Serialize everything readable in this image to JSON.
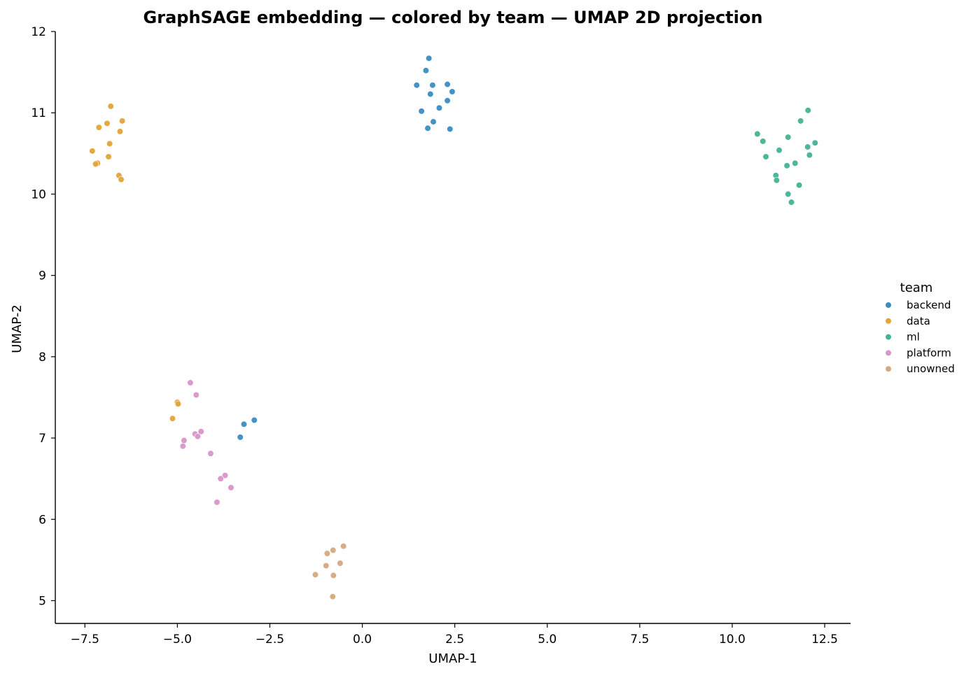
{
  "chart_data": {
    "type": "scatter",
    "title": "GraphSAGE embedding — colored by team — UMAP 2D projection",
    "xlabel": "UMAP-1",
    "ylabel": "UMAP-2",
    "xlim": [
      -8.3,
      13.2
    ],
    "ylim": [
      4.72,
      12.0
    ],
    "xticks": [
      -7.5,
      -5.0,
      -2.5,
      0.0,
      2.5,
      5.0,
      7.5,
      10.0,
      12.5
    ],
    "xtick_labels": [
      "−7.5",
      "−5.0",
      "−2.5",
      "0.0",
      "2.5",
      "5.0",
      "7.5",
      "10.0",
      "12.5"
    ],
    "yticks": [
      5,
      6,
      7,
      8,
      9,
      10,
      11,
      12
    ],
    "ytick_labels": [
      "5",
      "6",
      "7",
      "8",
      "9",
      "10",
      "11",
      "12"
    ],
    "grid": false,
    "legend": {
      "title": "team",
      "placement": "right"
    },
    "series": [
      {
        "name": "backend",
        "color": "#3b8dc1",
        "points": [
          [
            1.8,
            11.67
          ],
          [
            1.72,
            11.52
          ],
          [
            1.47,
            11.34
          ],
          [
            1.9,
            11.34
          ],
          [
            2.3,
            11.35
          ],
          [
            1.84,
            11.23
          ],
          [
            2.43,
            11.26
          ],
          [
            2.3,
            11.15
          ],
          [
            2.08,
            11.06
          ],
          [
            1.6,
            11.02
          ],
          [
            1.92,
            10.89
          ],
          [
            1.77,
            10.81
          ],
          [
            2.37,
            10.8
          ],
          [
            -3.2,
            7.17
          ],
          [
            -2.92,
            7.22
          ],
          [
            -3.3,
            7.01
          ]
        ]
      },
      {
        "name": "data",
        "color": "#e2a53a",
        "points": [
          [
            -6.8,
            11.08
          ],
          [
            -6.49,
            10.9
          ],
          [
            -6.9,
            10.87
          ],
          [
            -7.12,
            10.82
          ],
          [
            -6.55,
            10.77
          ],
          [
            -6.83,
            10.62
          ],
          [
            -7.3,
            10.53
          ],
          [
            -6.86,
            10.46
          ],
          [
            -7.16,
            10.38
          ],
          [
            -7.21,
            10.37
          ],
          [
            -6.58,
            10.23
          ],
          [
            -6.52,
            10.18
          ],
          [
            -5.0,
            7.44
          ],
          [
            -4.98,
            7.42
          ],
          [
            -5.13,
            7.24
          ]
        ]
      },
      {
        "name": "ml",
        "color": "#44b395",
        "points": [
          [
            12.05,
            11.03
          ],
          [
            11.85,
            10.9
          ],
          [
            10.68,
            10.74
          ],
          [
            11.51,
            10.7
          ],
          [
            10.83,
            10.65
          ],
          [
            12.24,
            10.63
          ],
          [
            12.04,
            10.58
          ],
          [
            11.27,
            10.54
          ],
          [
            10.91,
            10.46
          ],
          [
            12.09,
            10.48
          ],
          [
            11.7,
            10.38
          ],
          [
            11.48,
            10.35
          ],
          [
            11.18,
            10.23
          ],
          [
            11.2,
            10.17
          ],
          [
            11.81,
            10.11
          ],
          [
            11.51,
            10.0
          ],
          [
            11.6,
            9.9
          ]
        ]
      },
      {
        "name": "platform",
        "color": "#d895c9",
        "points": [
          [
            -4.65,
            7.68
          ],
          [
            -4.49,
            7.53
          ],
          [
            -4.36,
            7.08
          ],
          [
            -4.52,
            7.05
          ],
          [
            -4.45,
            7.02
          ],
          [
            -4.82,
            6.97
          ],
          [
            -4.85,
            6.9
          ],
          [
            -4.1,
            6.81
          ],
          [
            -3.71,
            6.54
          ],
          [
            -3.83,
            6.5
          ],
          [
            -3.55,
            6.39
          ],
          [
            -3.93,
            6.21
          ]
        ]
      },
      {
        "name": "unowned",
        "color": "#d4a97d",
        "points": [
          [
            -0.51,
            5.67
          ],
          [
            -0.79,
            5.62
          ],
          [
            -0.95,
            5.58
          ],
          [
            -0.6,
            5.46
          ],
          [
            -0.98,
            5.43
          ],
          [
            -1.27,
            5.32
          ],
          [
            -0.78,
            5.31
          ],
          [
            -0.8,
            5.05
          ]
        ]
      }
    ]
  }
}
